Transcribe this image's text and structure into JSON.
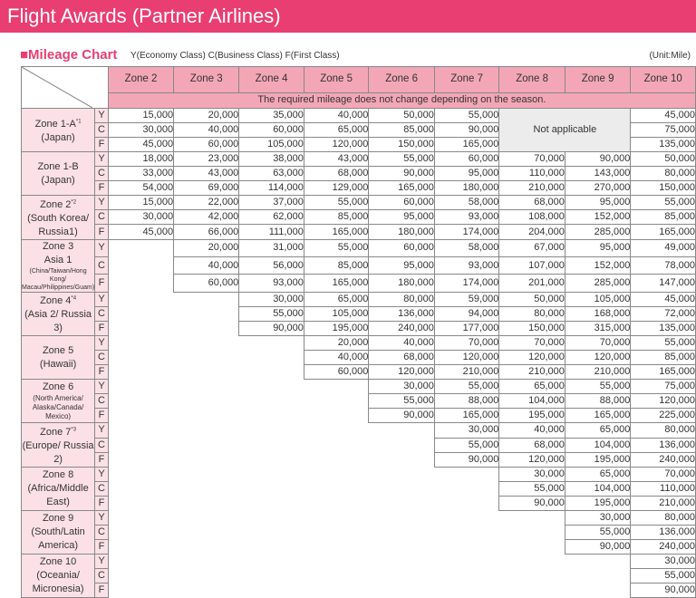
{
  "banner": {
    "title": "Flight Awards (Partner Airlines)"
  },
  "chart": {
    "title": "■Mileage Chart",
    "legend": "Y(Economy Class) C(Business Class) F(First Class)",
    "unit": "(Unit:Mile)",
    "season_note": "The required mileage does not change depending on the season.",
    "not_applicable": "Not applicable",
    "columns": [
      "Zone 2",
      "Zone 3",
      "Zone 4",
      "Zone 5",
      "Zone 6",
      "Zone 7",
      "Zone 8",
      "Zone 9",
      "Zone 10"
    ],
    "classes": [
      "Y",
      "C",
      "F"
    ],
    "rows": [
      {
        "zone": "Zone 1-A",
        "note": "*1",
        "sub": "(Japan)",
        "Y": [
          "15,000",
          "20,000",
          "35,000",
          "40,000",
          "50,000",
          "55,000",
          "",
          "",
          "45,000"
        ],
        "C": [
          "30,000",
          "40,000",
          "60,000",
          "65,000",
          "85,000",
          "90,000",
          "",
          "",
          "75,000"
        ],
        "F": [
          "45,000",
          "60,000",
          "105,000",
          "120,000",
          "150,000",
          "165,000",
          "",
          "",
          "135,000"
        ]
      },
      {
        "zone": "Zone 1-B",
        "note": "",
        "sub": "(Japan)",
        "Y": [
          "18,000",
          "23,000",
          "38,000",
          "43,000",
          "55,000",
          "60,000",
          "70,000",
          "90,000",
          "50,000"
        ],
        "C": [
          "33,000",
          "43,000",
          "63,000",
          "68,000",
          "90,000",
          "95,000",
          "110,000",
          "143,000",
          "80,000"
        ],
        "F": [
          "54,000",
          "69,000",
          "114,000",
          "129,000",
          "165,000",
          "180,000",
          "210,000",
          "270,000",
          "150,000"
        ]
      },
      {
        "zone": "Zone 2",
        "note": "*2",
        "sub": "(South Korea/ Russia1)",
        "Y": [
          "15,000",
          "22,000",
          "37,000",
          "55,000",
          "60,000",
          "58,000",
          "68,000",
          "95,000",
          "55,000"
        ],
        "C": [
          "30,000",
          "42,000",
          "62,000",
          "85,000",
          "95,000",
          "93,000",
          "108,000",
          "152,000",
          "85,000"
        ],
        "F": [
          "45,000",
          "66,000",
          "111,000",
          "165,000",
          "180,000",
          "174,000",
          "204,000",
          "285,000",
          "165,000"
        ]
      },
      {
        "zone": "Zone 3",
        "note": "",
        "sub": "Asia 1",
        "sub2": "(China/Taiwan/Hong Kong/ Macau/Philippines/Guam)",
        "Y": [
          "20,000",
          "31,000",
          "55,000",
          "60,000",
          "58,000",
          "67,000",
          "95,000",
          "49,000"
        ],
        "C": [
          "40,000",
          "56,000",
          "85,000",
          "95,000",
          "93,000",
          "107,000",
          "152,000",
          "78,000"
        ],
        "F": [
          "60,000",
          "93,000",
          "165,000",
          "180,000",
          "174,000",
          "201,000",
          "285,000",
          "147,000"
        ]
      },
      {
        "zone": "Zone 4",
        "note": "*4",
        "sub": "(Asia 2/ Russia 3)",
        "Y": [
          "30,000",
          "65,000",
          "80,000",
          "59,000",
          "50,000",
          "105,000",
          "45,000"
        ],
        "C": [
          "55,000",
          "105,000",
          "136,000",
          "94,000",
          "80,000",
          "168,000",
          "72,000"
        ],
        "F": [
          "90,000",
          "195,000",
          "240,000",
          "177,000",
          "150,000",
          "315,000",
          "135,000"
        ]
      },
      {
        "zone": "Zone 5",
        "note": "",
        "sub": "(Hawaii)",
        "Y": [
          "20,000",
          "40,000",
          "70,000",
          "70,000",
          "70,000",
          "55,000"
        ],
        "C": [
          "40,000",
          "68,000",
          "120,000",
          "120,000",
          "120,000",
          "85,000"
        ],
        "F": [
          "60,000",
          "120,000",
          "210,000",
          "210,000",
          "210,000",
          "165,000"
        ]
      },
      {
        "zone": "Zone 6",
        "note": "",
        "sub2": "(North America/ Alaska/Canada/ Mexico)",
        "Y": [
          "30,000",
          "55,000",
          "65,000",
          "55,000",
          "75,000"
        ],
        "C": [
          "55,000",
          "88,000",
          "104,000",
          "88,000",
          "120,000"
        ],
        "F": [
          "90,000",
          "165,000",
          "195,000",
          "165,000",
          "225,000"
        ]
      },
      {
        "zone": "Zone 7",
        "note": "*3",
        "sub": "(Europe/ Russia 2)",
        "Y": [
          "30,000",
          "40,000",
          "65,000",
          "80,000"
        ],
        "C": [
          "55,000",
          "68,000",
          "104,000",
          "136,000"
        ],
        "F": [
          "90,000",
          "120,000",
          "195,000",
          "240,000"
        ]
      },
      {
        "zone": "Zone 8",
        "note": "",
        "sub": "(Africa/Middle East)",
        "Y": [
          "30,000",
          "65,000",
          "70,000"
        ],
        "C": [
          "55,000",
          "104,000",
          "110,000"
        ],
        "F": [
          "90,000",
          "195,000",
          "210,000"
        ]
      },
      {
        "zone": "Zone 9",
        "note": "",
        "sub": "(South/Latin America)",
        "Y": [
          "30,000",
          "80,000"
        ],
        "C": [
          "55,000",
          "136,000"
        ],
        "F": [
          "90,000",
          "240,000"
        ]
      },
      {
        "zone": "Zone 10",
        "note": "",
        "sub": "(Oceania/ Micronesia)",
        "Y": [
          "30,000"
        ],
        "C": [
          "55,000"
        ],
        "F": [
          "90,000"
        ]
      }
    ]
  }
}
